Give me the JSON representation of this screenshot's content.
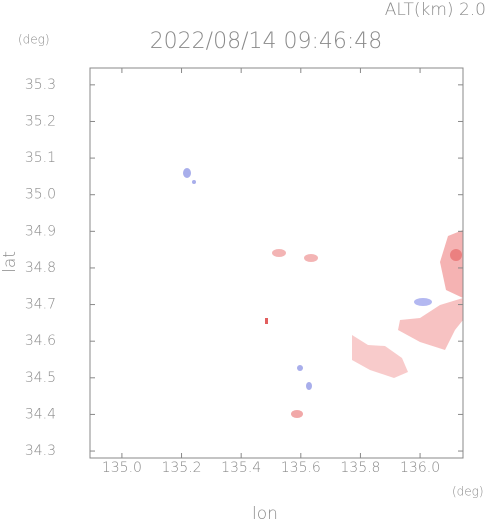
{
  "chart_data": {
    "type": "map",
    "title": "2022/08/14 09:46:48",
    "altitude_label": "ALT(km) 2.0",
    "y_unit": "(deg)",
    "x_unit": "(deg)",
    "x_label": "lon",
    "y_label": "lat",
    "xlim": [
      134.893,
      136.144
    ],
    "ylim": [
      34.281,
      35.346
    ],
    "xticks": [
      {
        "value": 135,
        "label": "135.0"
      },
      135.2,
      135.4,
      135.6,
      135.8,
      {
        "value": 136,
        "label": "136.0"
      }
    ],
    "yticks": [
      34.3,
      34.4,
      34.5,
      34.6,
      34.7,
      34.8,
      34.9,
      {
        "value": 35,
        "label": "35.0"
      },
      35.1,
      35.2,
      35.3
    ]
  }
}
